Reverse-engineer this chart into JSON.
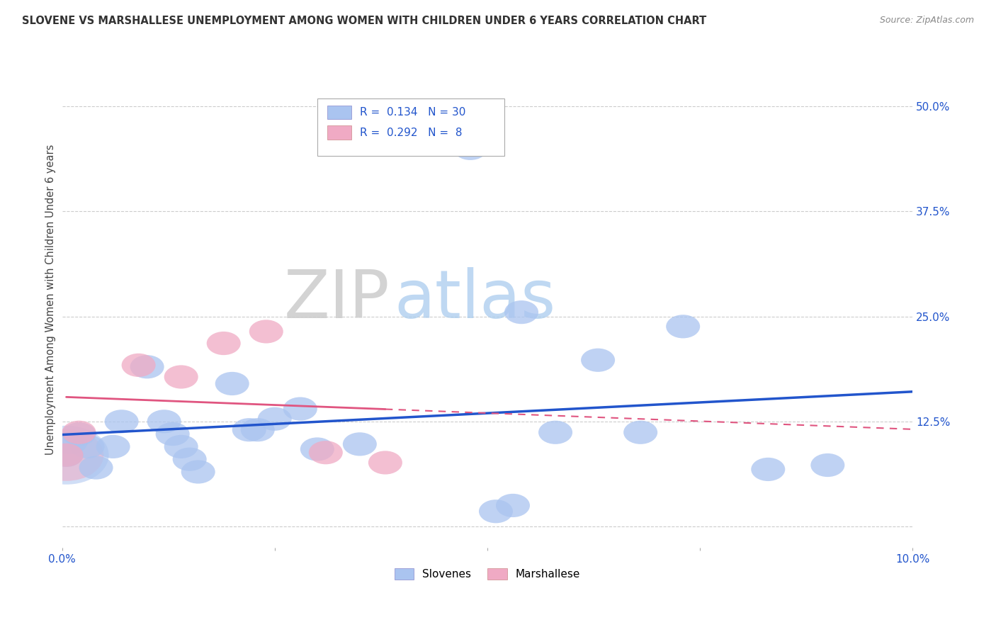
{
  "title": "SLOVENE VS MARSHALLESE UNEMPLOYMENT AMONG WOMEN WITH CHILDREN UNDER 6 YEARS CORRELATION CHART",
  "source": "Source: ZipAtlas.com",
  "ylabel": "Unemployment Among Women with Children Under 6 years",
  "xlim": [
    0.0,
    0.1
  ],
  "ylim": [
    -0.025,
    0.565
  ],
  "slovene_color": "#aac4f0",
  "marshallese_color": "#f0aac4",
  "trendline_slovene_color": "#2255cc",
  "trendline_marshallese_color": "#e05580",
  "watermark_zip": "ZIP",
  "watermark_atlas": "atlas",
  "legend_r_slovene": "0.134",
  "legend_n_slovene": "30",
  "legend_r_marshallese": "0.292",
  "legend_n_marshallese": "8",
  "slovene_x": [
    0.0005,
    0.001,
    0.002,
    0.003,
    0.004,
    0.006,
    0.007,
    0.01,
    0.012,
    0.013,
    0.014,
    0.015,
    0.016,
    0.02,
    0.022,
    0.023,
    0.025,
    0.028,
    0.03,
    0.035,
    0.048,
    0.051,
    0.053,
    0.054,
    0.058,
    0.063,
    0.068,
    0.073,
    0.083,
    0.09
  ],
  "slovene_y": [
    0.085,
    0.1,
    0.11,
    0.095,
    0.07,
    0.095,
    0.125,
    0.19,
    0.125,
    0.11,
    0.095,
    0.08,
    0.065,
    0.17,
    0.115,
    0.115,
    0.128,
    0.14,
    0.092,
    0.098,
    0.45,
    0.018,
    0.025,
    0.255,
    0.112,
    0.198,
    0.112,
    0.238,
    0.068,
    0.073
  ],
  "marshallese_x": [
    0.0005,
    0.002,
    0.009,
    0.014,
    0.019,
    0.024,
    0.031,
    0.038
  ],
  "marshallese_y": [
    0.085,
    0.112,
    0.192,
    0.178,
    0.218,
    0.232,
    0.088,
    0.076
  ],
  "ytick_vals": [
    0.0,
    0.125,
    0.25,
    0.375,
    0.5
  ],
  "ytick_labels": [
    "",
    "12.5%",
    "25.0%",
    "37.5%",
    "50.0%"
  ],
  "xtick_vals": [
    0.0,
    0.025,
    0.05,
    0.075,
    0.1
  ],
  "xtick_labels": [
    "0.0%",
    "",
    "",
    "",
    "10.0%"
  ]
}
